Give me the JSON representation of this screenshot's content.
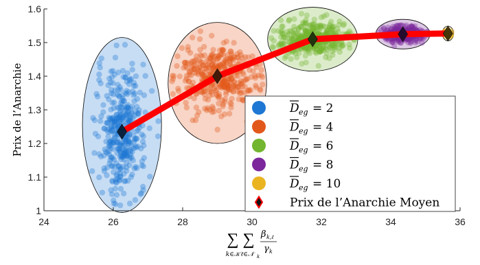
{
  "chart_data": {
    "type": "scatter",
    "xlabel": {
      "sum1_sub": "k∈𝒦",
      "sum2_sub": "ℓ∈𝒩",
      "sum2_sub_sub": "k",
      "frac_num": "β",
      "frac_num_sub": "k,ℓ",
      "frac_den": "γ",
      "frac_den_sub": "k"
    },
    "ylabel": "Prix de l’Anarchie",
    "xlim": [
      24,
      36
    ],
    "ylim": [
      1,
      1.6
    ],
    "xticks": [
      24,
      26,
      28,
      30,
      32,
      34,
      36
    ],
    "yticks": [
      1,
      1.1,
      1.2,
      1.3,
      1.4,
      1.5,
      1.6
    ],
    "grid": false,
    "legend_position": "lower-right",
    "series": [
      {
        "name": "D_eg = 2",
        "legend_sym": "D",
        "legend_sub": "eg",
        "legend_val": "= 2",
        "color": "#1f77d4",
        "mean": [
          26.25,
          1.235
        ],
        "spread": [
          0.35,
          0.09
        ],
        "ellipse": {
          "center": [
            26.25,
            1.255
          ],
          "rx": 1.14,
          "ry": 0.26
        },
        "count": 400
      },
      {
        "name": "D_eg = 4",
        "legend_sym": "D",
        "legend_sub": "eg",
        "legend_val": "= 4",
        "color": "#e2581b",
        "mean": [
          29.0,
          1.4
        ],
        "spread": [
          0.55,
          0.05
        ],
        "ellipse": {
          "center": [
            29.0,
            1.38
          ],
          "rx": 1.42,
          "ry": 0.18
        },
        "count": 400
      },
      {
        "name": "D_eg = 6",
        "legend_sym": "D",
        "legend_sub": "eg",
        "legend_val": "= 6",
        "color": "#72b52e",
        "mean": [
          31.75,
          1.51
        ],
        "spread": [
          0.5,
          0.025
        ],
        "ellipse": {
          "center": [
            31.75,
            1.51
          ],
          "rx": 1.3,
          "ry": 0.095
        },
        "count": 400
      },
      {
        "name": "D_eg = 8",
        "legend_sym": "D",
        "legend_sub": "eg",
        "legend_val": "= 8",
        "color": "#7c279c",
        "mean": [
          34.35,
          1.525
        ],
        "spread": [
          0.3,
          0.012
        ],
        "ellipse": {
          "center": [
            34.35,
            1.525
          ],
          "rx": 0.78,
          "ry": 0.044
        },
        "count": 300
      },
      {
        "name": "D_eg = 10",
        "legend_sym": "D",
        "legend_sub": "eg",
        "legend_val": "= 10",
        "color": "#eab420",
        "mean": [
          35.65,
          1.527
        ],
        "spread": [
          0.06,
          0.004
        ],
        "ellipse": {
          "center": [
            35.65,
            1.527
          ],
          "rx": 0.16,
          "ry": 0.022
        },
        "count": 60
      }
    ],
    "mean_line": {
      "name": "Prix de l’Anarchie Moyen",
      "x": [
        26.25,
        29.0,
        31.75,
        34.35,
        35.65
      ],
      "y": [
        1.235,
        1.4,
        1.51,
        1.525,
        1.527
      ],
      "color": "#ff0000"
    }
  }
}
